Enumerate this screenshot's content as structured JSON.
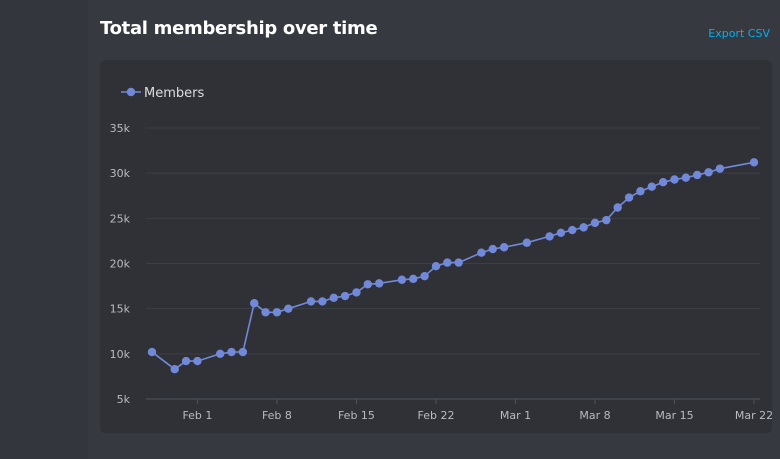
{
  "header": {
    "title": "Total membership over time",
    "export_label": "Export CSV"
  },
  "colors": {
    "background": "#36393f",
    "card": "#2f3136",
    "series": "#7289da",
    "link": "#00b0f4"
  },
  "chart_data": {
    "type": "line",
    "title": "",
    "xlabel": "",
    "ylabel": "",
    "legend_position": "top-left",
    "grid": true,
    "ylim": [
      5000,
      35000
    ],
    "xlim": [
      "2021-01-28",
      "2021-03-22"
    ],
    "y_ticks": [
      5000,
      10000,
      15000,
      20000,
      25000,
      30000,
      35000
    ],
    "y_tick_labels": [
      "5k",
      "10k",
      "15k",
      "20k",
      "25k",
      "30k",
      "35k"
    ],
    "x_ticks": [
      "2021-02-01",
      "2021-02-08",
      "2021-02-15",
      "2021-02-22",
      "2021-03-01",
      "2021-03-08",
      "2021-03-15",
      "2021-03-22"
    ],
    "x_tick_labels": [
      "Feb 1",
      "Feb 8",
      "Feb 15",
      "Feb 22",
      "Mar 1",
      "Mar 8",
      "Mar 15",
      "Mar 22"
    ],
    "series": [
      {
        "name": "Members",
        "color": "#7289da",
        "points": [
          [
            "2021-01-28",
            10200
          ],
          [
            "2021-01-30",
            8300
          ],
          [
            "2021-01-31",
            9200
          ],
          [
            "2021-02-01",
            9200
          ],
          [
            "2021-02-03",
            10000
          ],
          [
            "2021-02-04",
            10200
          ],
          [
            "2021-02-05",
            10200
          ],
          [
            "2021-02-06",
            15600
          ],
          [
            "2021-02-07",
            14600
          ],
          [
            "2021-02-08",
            14600
          ],
          [
            "2021-02-09",
            15000
          ],
          [
            "2021-02-11",
            15800
          ],
          [
            "2021-02-12",
            15800
          ],
          [
            "2021-02-13",
            16200
          ],
          [
            "2021-02-14",
            16400
          ],
          [
            "2021-02-15",
            16800
          ],
          [
            "2021-02-16",
            17700
          ],
          [
            "2021-02-17",
            17800
          ],
          [
            "2021-02-19",
            18200
          ],
          [
            "2021-02-20",
            18300
          ],
          [
            "2021-02-21",
            18600
          ],
          [
            "2021-02-22",
            19700
          ],
          [
            "2021-02-23",
            20100
          ],
          [
            "2021-02-24",
            20100
          ],
          [
            "2021-02-26",
            21200
          ],
          [
            "2021-02-27",
            21600
          ],
          [
            "2021-02-28",
            21800
          ],
          [
            "2021-03-02",
            22300
          ],
          [
            "2021-03-04",
            23000
          ],
          [
            "2021-03-05",
            23400
          ],
          [
            "2021-03-06",
            23700
          ],
          [
            "2021-03-07",
            24000
          ],
          [
            "2021-03-08",
            24500
          ],
          [
            "2021-03-09",
            24800
          ],
          [
            "2021-03-10",
            26200
          ],
          [
            "2021-03-11",
            27300
          ],
          [
            "2021-03-12",
            28000
          ],
          [
            "2021-03-13",
            28500
          ],
          [
            "2021-03-14",
            29000
          ],
          [
            "2021-03-15",
            29300
          ],
          [
            "2021-03-16",
            29500
          ],
          [
            "2021-03-17",
            29800
          ],
          [
            "2021-03-18",
            30100
          ],
          [
            "2021-03-19",
            30500
          ],
          [
            "2021-03-22",
            31200
          ]
        ]
      }
    ]
  }
}
